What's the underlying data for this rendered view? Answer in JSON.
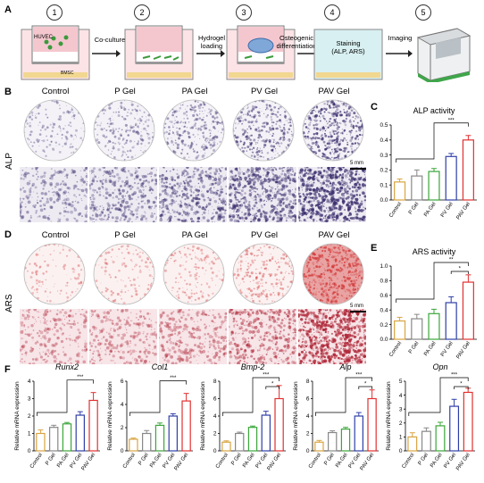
{
  "panels": {
    "A": "A",
    "B": "B",
    "C": "C",
    "D": "D",
    "E": "E",
    "F": "F"
  },
  "steps": [
    {
      "num": "1",
      "text": "",
      "sub": [
        "HUVEC",
        "BMSC"
      ]
    },
    {
      "num": "2",
      "text": "Co-culture"
    },
    {
      "num": "3",
      "text": "Hydrogel\nloading"
    },
    {
      "num": "4",
      "text": "Osteogenic\ndifferentiation",
      "box": "Staining\n(ALP, ARS)"
    },
    {
      "num": "5",
      "text": "Imaging"
    }
  ],
  "groups": [
    "Control",
    "P Gel",
    "PA Gel",
    "PV Gel",
    "PAV Gel"
  ],
  "rows": {
    "alp": "ALP",
    "ars": "ARS"
  },
  "scale_bar": "5 mm",
  "colors": {
    "Control": "#d9a441",
    "P Gel": "#888888",
    "PA Gel": "#3aa63a",
    "PV Gel": "#2f3fa8",
    "PAV Gel": "#e23030",
    "alp_stain": "#3b2f6e",
    "ars_stain": "#d23a3a"
  },
  "chart_data": [
    {
      "type": "bar",
      "id": "alp",
      "title": "ALP activity",
      "categories": [
        "Control",
        "P Gel",
        "PA Gel",
        "PV Gel",
        "PAV Gel"
      ],
      "values": [
        0.12,
        0.16,
        0.19,
        0.29,
        0.4
      ],
      "errors": [
        0.02,
        0.04,
        0.02,
        0.02,
        0.03
      ],
      "ylim": [
        0,
        0.5
      ],
      "yticks": [
        "0.0",
        "0.1",
        "0.2",
        "0.3",
        "0.4",
        "0.5"
      ],
      "sig": [
        "***"
      ],
      "ylabel": ""
    },
    {
      "type": "bar",
      "id": "ars",
      "title": "ARS activity",
      "categories": [
        "Control",
        "P Gel",
        "PA Gel",
        "PV Gel",
        "PAV Gel"
      ],
      "values": [
        0.25,
        0.28,
        0.35,
        0.5,
        0.78
      ],
      "errors": [
        0.05,
        0.06,
        0.06,
        0.08,
        0.1
      ],
      "ylim": [
        0,
        1.0
      ],
      "yticks": [
        "0.0",
        "0.2",
        "0.4",
        "0.6",
        "0.8",
        "1.0"
      ],
      "sig": [
        "**",
        "*"
      ],
      "ylabel": ""
    },
    {
      "type": "bar",
      "id": "runx2",
      "title": "Runx2",
      "ylabel": "Relative mRNA expression",
      "categories": [
        "Control",
        "P Gel",
        "PA Gel",
        "PV Gel",
        "PAV Gel"
      ],
      "values": [
        1.0,
        1.35,
        1.55,
        2.05,
        2.9
      ],
      "errors": [
        0.2,
        0.12,
        0.08,
        0.2,
        0.45
      ],
      "ylim": [
        0,
        4
      ],
      "yticks": [
        "0",
        "1",
        "2",
        "3",
        "4"
      ],
      "sig": [
        "***"
      ]
    },
    {
      "type": "bar",
      "id": "col1",
      "title": "Col1",
      "ylabel": "Relative mRNA expression",
      "categories": [
        "Control",
        "P Gel",
        "PA Gel",
        "PV Gel",
        "PAV Gel"
      ],
      "values": [
        1.0,
        1.5,
        2.2,
        3.0,
        4.3
      ],
      "errors": [
        0.1,
        0.25,
        0.2,
        0.2,
        0.65
      ],
      "ylim": [
        0,
        6
      ],
      "yticks": [
        "0",
        "2",
        "4",
        "6"
      ],
      "sig": [
        "***"
      ]
    },
    {
      "type": "bar",
      "id": "bmp2",
      "title": "Bmp-2",
      "ylabel": "Relative mRNA expression",
      "categories": [
        "Control",
        "P Gel",
        "PA Gel",
        "PV Gel",
        "PAV Gel"
      ],
      "values": [
        1.0,
        2.0,
        2.7,
        4.1,
        6.0
      ],
      "errors": [
        0.15,
        0.15,
        0.15,
        0.45,
        1.5
      ],
      "ylim": [
        0,
        8
      ],
      "yticks": [
        "0",
        "2",
        "4",
        "6",
        "8"
      ],
      "sig": [
        "***",
        "*"
      ]
    },
    {
      "type": "bar",
      "id": "alp_m",
      "title": "Alp",
      "ylabel": "Relative mRNA expression",
      "categories": [
        "Control",
        "P Gel",
        "PA Gel",
        "PV Gel",
        "PAV Gel"
      ],
      "values": [
        1.0,
        2.1,
        2.5,
        4.0,
        6.0
      ],
      "errors": [
        0.2,
        0.2,
        0.2,
        0.4,
        1.0
      ],
      "ylim": [
        0,
        8
      ],
      "yticks": [
        "0",
        "2",
        "4",
        "6",
        "8"
      ],
      "sig": [
        "***",
        "*"
      ]
    },
    {
      "type": "bar",
      "id": "opn",
      "title": "Opn",
      "ylabel": "Relative mRNA expression",
      "categories": [
        "Control",
        "P Gel",
        "PA Gel",
        "PV Gel",
        "PAV Gel"
      ],
      "values": [
        1.0,
        1.4,
        1.8,
        3.2,
        4.2
      ],
      "errors": [
        0.3,
        0.25,
        0.25,
        0.5,
        0.3
      ],
      "ylim": [
        0,
        5
      ],
      "yticks": [
        "0",
        "1",
        "2",
        "3",
        "4",
        "5"
      ],
      "sig": [
        "***",
        "*"
      ]
    }
  ]
}
